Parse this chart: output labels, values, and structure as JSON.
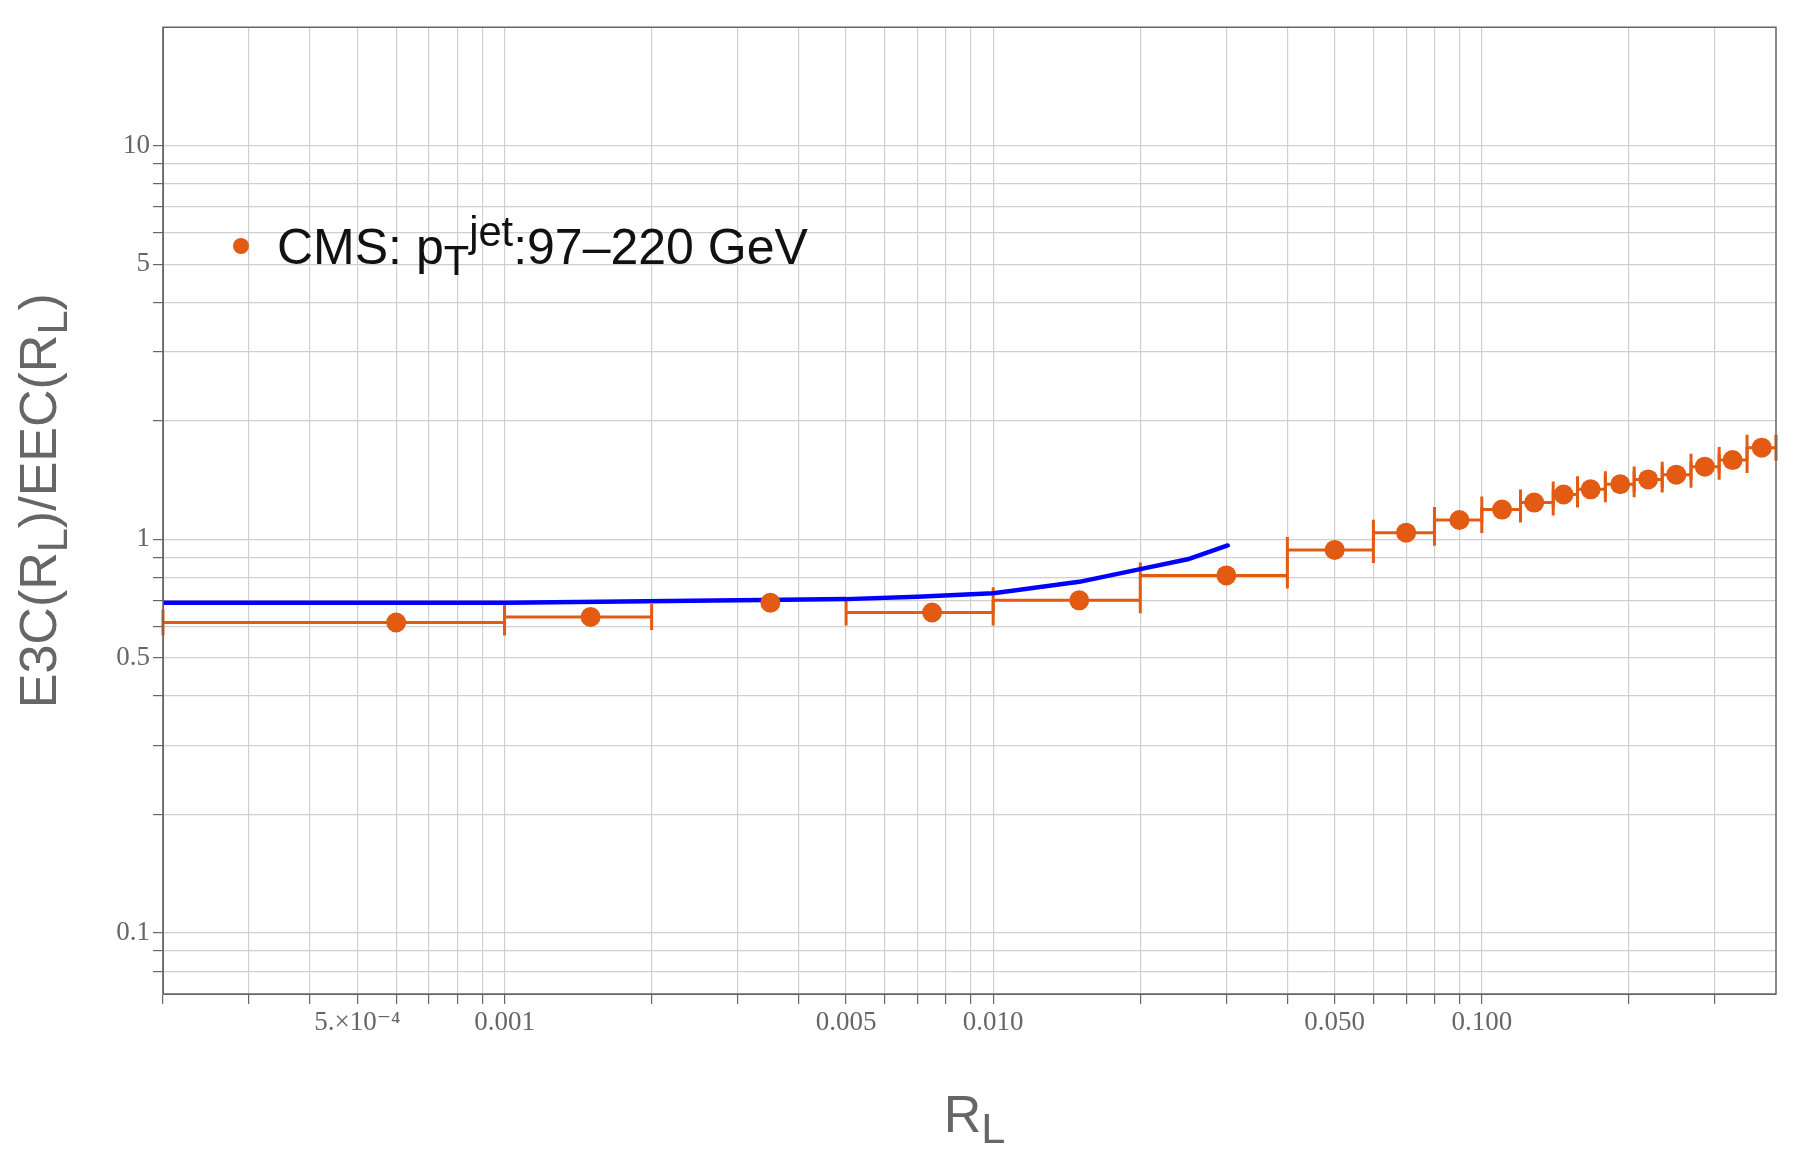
{
  "chart_data": {
    "type": "scatter",
    "xlabel": "R$_{L}$",
    "ylabel": "E3C(R$_{L}$)/EEC(R$_{L}$)",
    "log": "xy",
    "grid": true,
    "legend": "top left",
    "xlim": [
      0.0002,
      0.4
    ],
    "ylim": [
      0.07,
      20
    ],
    "xticks": [
      {
        "value": 0.0002,
        "label": null
      },
      {
        "value": 0.0003,
        "label": null
      },
      {
        "value": 0.0004,
        "label": null
      },
      {
        "value": 0.0005,
        "label": "5.×10⁻⁴"
      },
      {
        "value": 0.0006,
        "label": null
      },
      {
        "value": 0.0007,
        "label": null
      },
      {
        "value": 0.0008,
        "label": null
      },
      {
        "value": 0.0009,
        "label": null
      },
      0.001,
      {
        "value": 0.002,
        "label": null
      },
      {
        "value": 0.003,
        "label": null
      },
      {
        "value": 0.004,
        "label": null
      },
      0.005,
      {
        "value": 0.006,
        "label": null
      },
      {
        "value": 0.007,
        "label": null
      },
      {
        "value": 0.008,
        "label": null
      },
      {
        "value": 0.009,
        "label": null
      },
      {
        "value": 0.01,
        "label": "0.010"
      },
      {
        "value": 0.02,
        "label": null
      },
      {
        "value": 0.03,
        "label": null
      },
      {
        "value": 0.04,
        "label": null
      },
      {
        "value": 0.05,
        "label": "0.050"
      },
      {
        "value": 0.06,
        "label": null
      },
      {
        "value": 0.07,
        "label": null
      },
      {
        "value": 0.08,
        "label": null
      },
      {
        "value": 0.09,
        "label": null
      },
      {
        "value": 0.1,
        "label": "0.100"
      },
      {
        "value": 0.2,
        "label": null
      },
      {
        "value": 0.3,
        "label": null
      }
    ],
    "yticks": [
      {
        "value": 0.08,
        "label": null
      },
      {
        "value": 0.09,
        "label": null
      },
      0.1,
      {
        "value": 0.2,
        "label": null
      },
      {
        "value": 0.3,
        "label": null
      },
      {
        "value": 0.4,
        "label": null
      },
      0.5,
      {
        "value": 0.6,
        "label": null
      },
      {
        "value": 0.7,
        "label": null
      },
      {
        "value": 0.8,
        "label": null
      },
      {
        "value": 0.9,
        "label": null
      },
      1,
      {
        "value": 2,
        "label": null
      },
      {
        "value": 3,
        "label": null
      },
      {
        "value": 4,
        "label": null
      },
      5,
      {
        "value": 6,
        "label": null
      },
      {
        "value": 7,
        "label": null
      },
      {
        "value": 8,
        "label": null
      },
      {
        "value": 9,
        "label": null
      },
      10
    ],
    "series": [
      {
        "name": "CMS: p$_{T}$$^{jet}$:97–220 GeV",
        "type": "scatter",
        "marker": "circle",
        "color": "#e35a12",
        "x": [
          0.0006,
          0.0015,
          0.0035,
          0.0075,
          0.015,
          0.03,
          0.05,
          0.07,
          0.09,
          0.11,
          0.128,
          0.147,
          0.167,
          0.192,
          0.219,
          0.25,
          0.286,
          0.326,
          0.374
        ],
        "values": [
          0.615,
          0.635,
          0.69,
          0.652,
          0.7,
          0.81,
          0.94,
          1.04,
          1.12,
          1.19,
          1.24,
          1.3,
          1.34,
          1.38,
          1.42,
          1.46,
          1.53,
          1.59,
          1.71
        ],
        "xerrors": [
          [
            0.0002,
            0.001
          ],
          [
            0.001,
            0.002
          ],
          null,
          [
            0.005,
            0.01
          ],
          [
            0.01,
            0.02
          ],
          [
            0.02,
            0.04
          ],
          [
            0.04,
            0.06
          ],
          [
            0.06,
            0.08
          ],
          [
            0.08,
            0.1
          ],
          [
            0.1,
            0.12
          ],
          [
            0.12,
            0.14
          ],
          [
            0.14,
            0.157
          ],
          [
            0.157,
            0.179
          ],
          [
            0.179,
            0.205
          ],
          [
            0.205,
            0.234
          ],
          [
            0.234,
            0.268
          ],
          [
            0.268,
            0.306
          ],
          [
            0.306,
            0.349
          ],
          [
            0.349,
            0.4
          ]
        ]
      },
      {
        "type": "line",
        "marker": "none",
        "line_style": "solid",
        "color": "#0000ff",
        "x": [
          0.0002,
          0.001,
          0.003,
          0.005,
          0.007,
          0.01,
          0.015,
          0.02,
          0.025,
          0.0302
        ],
        "values": [
          0.69,
          0.69,
          0.7,
          0.705,
          0.715,
          0.73,
          0.78,
          0.84,
          0.89,
          0.965
        ]
      }
    ]
  }
}
